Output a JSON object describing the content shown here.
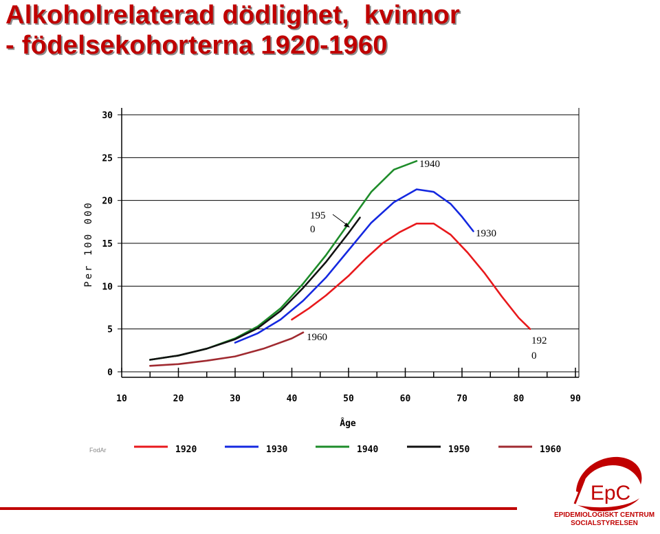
{
  "title": {
    "line1": "Alkoholrelaterad dödlighet,  kvinnor",
    "line2": "- födelsekohorterna 1920-1960"
  },
  "chart_data": {
    "type": "line",
    "xlabel": "Âge",
    "ylabel": "Per 100 000",
    "xlim": [
      10,
      90
    ],
    "ylim": [
      0,
      30
    ],
    "xticks": [
      "10",
      "20",
      "30",
      "40",
      "50",
      "60",
      "70",
      "80",
      "90"
    ],
    "yticks": [
      "0",
      "5",
      "10",
      "15",
      "20",
      "25",
      "30"
    ],
    "grid": "horizontal",
    "legend_position": "bottom",
    "series": [
      {
        "name": "1920",
        "color": "#e8191c",
        "x": [
          40,
          43,
          46,
          50,
          53,
          56,
          59,
          62,
          65,
          68,
          71,
          74,
          77,
          80,
          82
        ],
        "y": [
          6.1,
          7.4,
          8.9,
          11.2,
          13.2,
          15.0,
          16.3,
          17.3,
          17.3,
          16.0,
          13.9,
          11.5,
          8.8,
          6.3,
          5.0
        ]
      },
      {
        "name": "1930",
        "color": "#1428e0",
        "x": [
          30,
          34,
          38,
          42,
          46,
          50,
          54,
          58,
          62,
          65,
          68,
          70,
          72
        ],
        "y": [
          3.4,
          4.5,
          6.1,
          8.3,
          11.0,
          14.2,
          17.4,
          19.8,
          21.3,
          21.0,
          19.6,
          18.1,
          16.4
        ]
      },
      {
        "name": "1940",
        "color": "#1e8c2a",
        "x": [
          15,
          20,
          25,
          30,
          34,
          38,
          42,
          46,
          50,
          54,
          58,
          62
        ],
        "y": [
          1.4,
          1.9,
          2.7,
          3.9,
          5.3,
          7.4,
          10.3,
          13.6,
          17.3,
          21.0,
          23.6,
          24.6
        ]
      },
      {
        "name": "1950",
        "color": "#111111",
        "x": [
          15,
          20,
          25,
          30,
          34,
          38,
          42,
          46,
          50,
          52
        ],
        "y": [
          1.4,
          1.9,
          2.7,
          3.8,
          5.1,
          7.1,
          9.8,
          12.8,
          16.2,
          18.0
        ]
      },
      {
        "name": "1960",
        "color": "#a02a30",
        "x": [
          15,
          20,
          25,
          30,
          35,
          40,
          42
        ],
        "y": [
          0.7,
          0.9,
          1.3,
          1.8,
          2.7,
          3.9,
          4.6
        ]
      }
    ],
    "annotations": [
      {
        "text_line1": "1940",
        "text_line2": ""
      },
      {
        "text_line1": "195",
        "text_line2": "0"
      },
      {
        "text_line1": "1930",
        "text_line2": ""
      },
      {
        "text_line1": "1960",
        "text_line2": ""
      },
      {
        "text_line1": "192",
        "text_line2": "0"
      }
    ]
  },
  "footer": {
    "source_label": "FodAr",
    "logo_text": "EpC",
    "org_line1": "EPIDEMIOLOGISKT CENTRUM",
    "org_line2": "SOCIALSTYRELSEN"
  },
  "colors": {
    "title": "#c00000",
    "brand": "#c00000"
  }
}
